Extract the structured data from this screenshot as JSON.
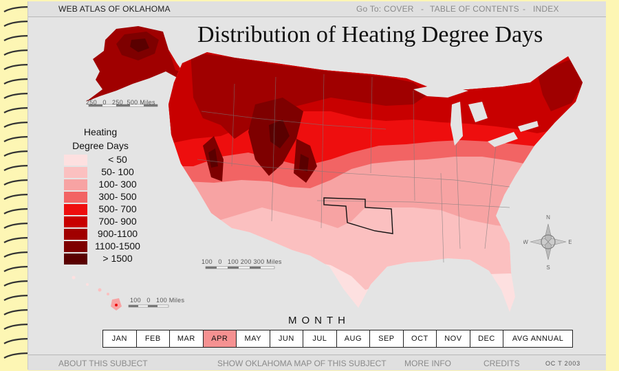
{
  "header": {
    "atlas_title": "WEB ATLAS OF OKLAHOMA",
    "goto_label": "Go To:",
    "nav": [
      {
        "label": "COVER"
      },
      {
        "sep": "-"
      },
      {
        "label": "TABLE OF CONTENTS"
      },
      {
        "sep": "-"
      },
      {
        "label": "INDEX"
      }
    ]
  },
  "map_title": "Distribution of Heating Degree Days",
  "legend": {
    "title_line1": "Heating",
    "title_line2": "Degree Days",
    "classes": [
      {
        "label": "< 50",
        "color": "#fde0e0"
      },
      {
        "label": "50- 100",
        "color": "#fbc0c0"
      },
      {
        "label": "100- 300",
        "color": "#f7a3a3"
      },
      {
        "label": "300- 500",
        "color": "#f26464"
      },
      {
        "label": "500- 700",
        "color": "#ee0e0e"
      },
      {
        "label": "700- 900",
        "color": "#c80000"
      },
      {
        "label": "900-1100",
        "color": "#a00000"
      },
      {
        "label": "1100-1500",
        "color": "#7e0000"
      },
      {
        "label": "> 1500",
        "color": "#5a0000"
      }
    ]
  },
  "scales": {
    "alaska": {
      "ticks": "250   0   250  500",
      "unit": "Miles"
    },
    "conus": {
      "ticks": "100   0   100 200 300",
      "unit": "Miles"
    },
    "hawaii": {
      "ticks": "100   0   100",
      "unit": "Miles"
    }
  },
  "compass": {
    "n": "N",
    "s": "S",
    "e": "E",
    "w": "W"
  },
  "months": {
    "label": "MONTH",
    "items": [
      "JAN",
      "FEB",
      "MAR",
      "APR",
      "MAY",
      "JUN",
      "JUL",
      "AUG",
      "SEP",
      "OCT",
      "NOV",
      "DEC",
      "AVG ANNUAL"
    ],
    "selected": "APR"
  },
  "footer": {
    "about": "ABOUT THIS SUBJECT",
    "show_ok": "SHOW OKLAHOMA MAP OF THIS SUBJECT",
    "more_info": "MORE INFO",
    "credits": "CREDITS",
    "date": "OC T 2003"
  }
}
